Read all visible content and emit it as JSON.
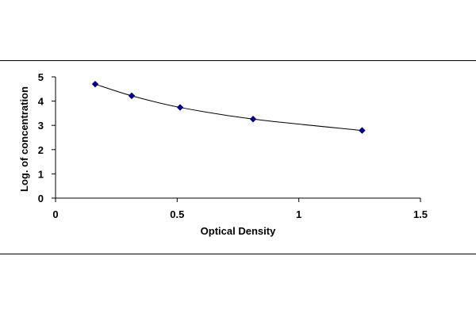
{
  "chart_data": {
    "type": "scatter",
    "xlabel": "Optical Density",
    "ylabel": "Log. of concentration",
    "xlim": [
      0,
      1.5
    ],
    "ylim": [
      0,
      5
    ],
    "xticks": [
      "0",
      "0.5",
      "1",
      "1.5"
    ],
    "yticks": [
      "0",
      "1",
      "2",
      "3",
      "4",
      "5"
    ],
    "grid": false,
    "legend": "none",
    "series": [
      {
        "x": [
          0.163,
          0.313,
          0.512,
          0.812,
          1.26
        ],
        "y": [
          4.7,
          4.22,
          3.74,
          3.26,
          2.79
        ],
        "color": "#000080",
        "trendline": "smooth curve"
      }
    ]
  }
}
